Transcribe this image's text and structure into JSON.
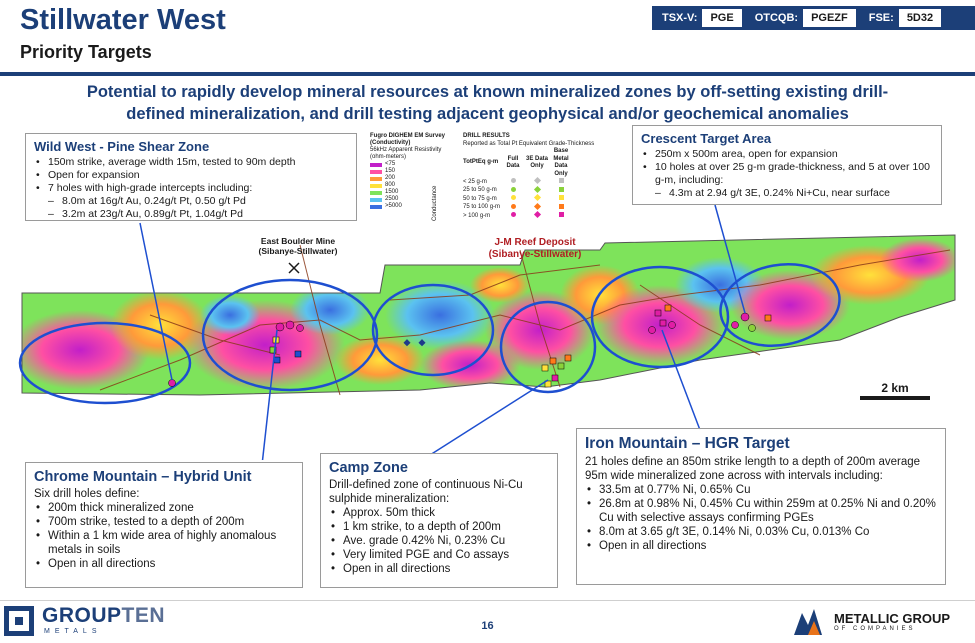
{
  "header": {
    "title": "Stillwater West",
    "subtitle": "Priority Targets",
    "tickers": [
      {
        "exchange": "TSX-V:",
        "symbol": "PGE"
      },
      {
        "exchange": "OTCQB:",
        "symbol": "PGEZF"
      },
      {
        "exchange": "FSE:",
        "symbol": "5D32"
      }
    ],
    "headline_line1": "Potential to rapidly develop mineral resources at known mineralized zones by off-setting existing drill-",
    "headline_line2": "defined mineralization, and drill testing adjacent geophysical and/or geochemical anomalies"
  },
  "colors": {
    "brand_blue": "#1c3f78",
    "jm_red": "#b01e23",
    "target_ellipse": "#1e4fd0"
  },
  "wild_west": {
    "title": "Wild West - Pine Shear Zone",
    "bullets": [
      "150m strike, average width 15m, tested to 90m depth",
      "Open for expansion",
      "7 holes with high-grade intercepts including:"
    ],
    "sub": [
      "8.0m at 16g/t Au, 0.24g/t Pt, 0.50 g/t Pd",
      "3.2m at 23g/t Au, 0.89g/t Pt, 1.04g/t Pd"
    ]
  },
  "legend_em": {
    "title1": "Fugro DIGHEM EM Survey",
    "title2": "(Conductivity)",
    "title3": "56kHz Apparent Resistivity",
    "title4": "(ohm-meters)",
    "rows": [
      {
        "label": "<75",
        "color": "#c21fc9"
      },
      {
        "label": "150",
        "color": "#ff4fa3"
      },
      {
        "label": "200",
        "color": "#ff9a3a"
      },
      {
        "label": "800",
        "color": "#ffe13a"
      },
      {
        "label": "1500",
        "color": "#7ee35b"
      },
      {
        "label": "2500",
        "color": "#5bc2f0"
      },
      {
        "label": ">5000",
        "color": "#3a6fe0"
      }
    ],
    "axis_label": "Conductance"
  },
  "legend_drill": {
    "title1": "DRILL RESULTS",
    "title2": "Reported as Total Pt Equivalent Grade-Thickness",
    "col0": "TotPtEq g-m",
    "col1": "Full Data",
    "col2": "3E Data Only",
    "col3": "Base Metal Data Only",
    "rows": [
      "< 25 g-m",
      "25 to 50 g-m",
      "50 to 75 g-m",
      "75 to 100 g-m",
      "> 100 g-m"
    ],
    "row_colors": [
      "#bfbfbf",
      "#8ad23a",
      "#ffe13a",
      "#ff7a1a",
      "#e01ea5"
    ]
  },
  "crescent": {
    "title": "Crescent Target Area",
    "bullets": [
      "250m x 500m area, open for expansion",
      "10 holes at over 25 g-m grade-thickness, and 5 at over 100 g-m, including:"
    ],
    "sub": [
      "4.3m at 2.94 g/t 3E, 0.24% Ni+Cu, near surface"
    ]
  },
  "map_labels": {
    "east_boulder_1": "East Boulder Mine",
    "east_boulder_2": "(Sibanye-Stillwater)",
    "jm_1": "J-M Reef Deposit",
    "jm_2": "(Sibanye-Stillwater)",
    "scale": "2 km"
  },
  "chrome_mountain": {
    "title": "Chrome Mountain – Hybrid Unit",
    "intro": "Six drill holes define:",
    "bullets": [
      "200m thick mineralized zone",
      "700m strike, tested to a depth of 200m",
      "Within a 1 km wide area of highly anomalous metals in soils",
      "Open in all directions"
    ]
  },
  "camp_zone": {
    "title": "Camp Zone",
    "intro": "Drill-defined zone of continuous Ni-Cu sulphide mineralization:",
    "bullets": [
      "Approx. 50m thick",
      "1 km strike, to a depth of 200m",
      "Ave. grade 0.42% Ni, 0.23% Cu",
      "Very limited PGE and Co assays",
      "Open in all directions"
    ]
  },
  "iron_mountain": {
    "title": "Iron Mountain – HGR Target",
    "intro": "21 holes define an 850m strike length to a depth of 200m average 95m wide mineralized zone across with intervals including:",
    "bullets": [
      "33.5m at 0.77% Ni, 0.65% Cu",
      "26.8m at 0.98% Ni, 0.45% Cu within 259m at 0.25% Ni and 0.20% Cu with selective assays confirming PGEs",
      "8.0m at 3.65 g/t 3E, 0.14% Ni, 0.03% Cu, 0.013% Co",
      "Open in all directions"
    ]
  },
  "footer": {
    "logo_left_main": "GROUP",
    "logo_left_light": "TEN",
    "logo_left_sub": "METALS",
    "page_number": "16",
    "logo_right_main": "METALLIC GROUP",
    "logo_right_sub": "OF COMPANIES"
  }
}
